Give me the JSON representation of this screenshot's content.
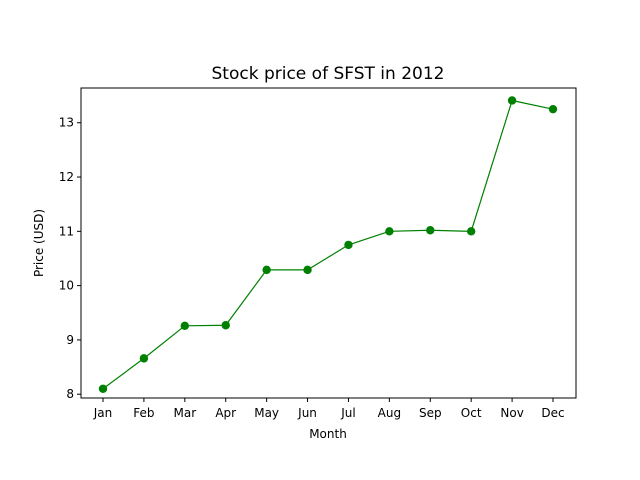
{
  "chart_data": {
    "type": "line",
    "title": "Stock price of SFST in 2012",
    "xlabel": "Month",
    "ylabel": "Price (USD)",
    "categories": [
      "Jan",
      "Feb",
      "Mar",
      "Apr",
      "May",
      "Jun",
      "Jul",
      "Aug",
      "Sep",
      "Oct",
      "Nov",
      "Dec"
    ],
    "series": [
      {
        "values": [
          8.1,
          8.66,
          9.26,
          9.27,
          10.29,
          10.29,
          10.75,
          11.0,
          11.02,
          11.0,
          13.41,
          13.25
        ],
        "color": "#008000",
        "marker": "circle"
      }
    ],
    "ylim": [
      7.93,
      13.64
    ],
    "yticks": [
      8,
      9,
      10,
      11,
      12,
      13
    ],
    "grid": false,
    "legend": "none"
  }
}
